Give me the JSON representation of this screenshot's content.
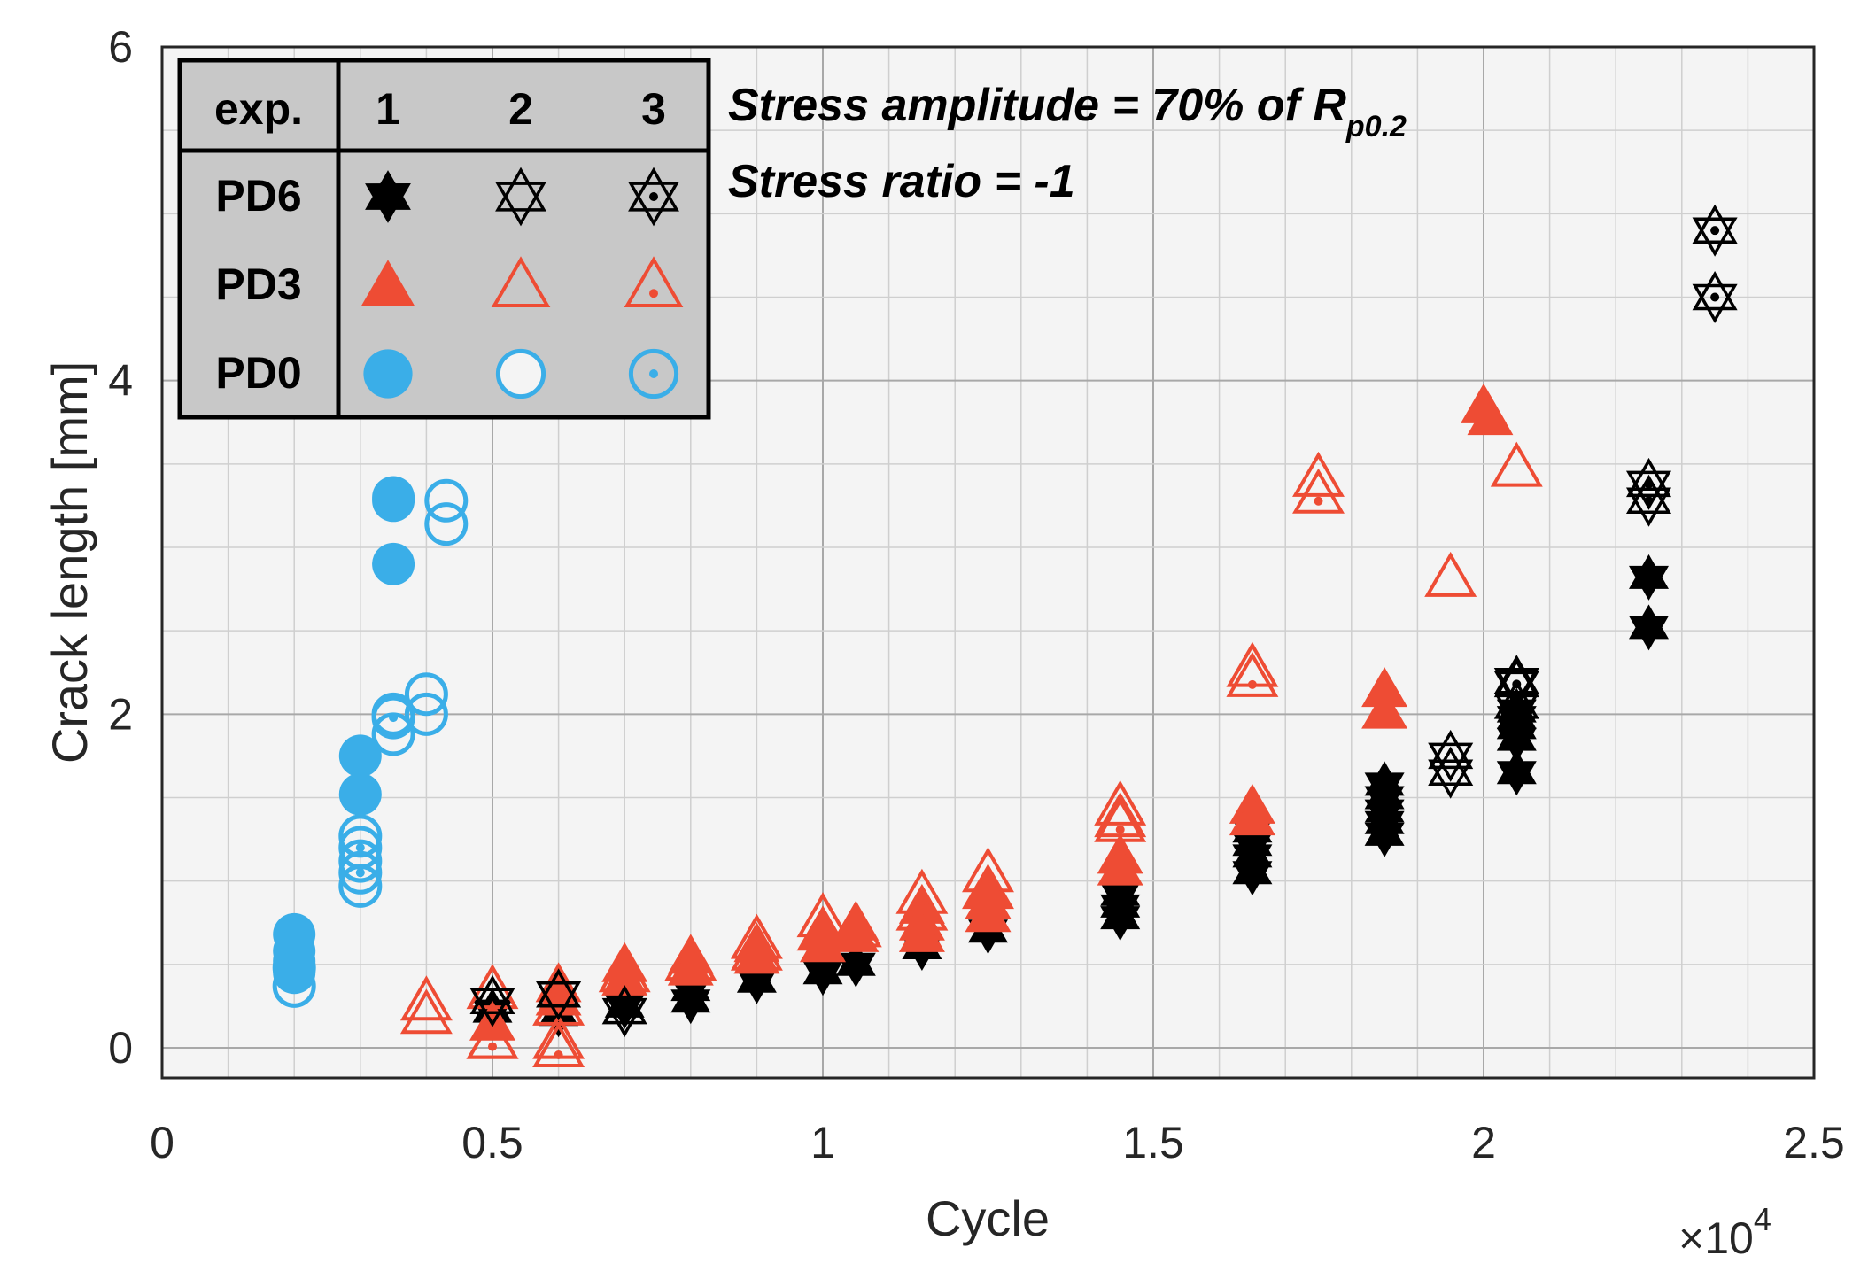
{
  "chart_data": {
    "type": "scatter",
    "xlabel": "Cycle",
    "ylabel": "Crack length [mm]",
    "x_multiplier_label": "×10",
    "x_multiplier_exp": "4",
    "xlim": [
      0,
      25000
    ],
    "ylim": [
      -0.2,
      6
    ],
    "x_ticks": [
      0,
      5000,
      10000,
      15000,
      20000,
      25000
    ],
    "x_tick_labels": [
      "0",
      "0.5",
      "1",
      "1.5",
      "2",
      "2.5"
    ],
    "y_ticks": [
      0,
      2,
      4,
      6
    ],
    "y_tick_labels": [
      "0",
      "2",
      "4",
      "6"
    ],
    "grid": true,
    "annotations": {
      "line1": "Stress amplitude = 70% of R",
      "line1_sub": "p0.2",
      "line2": "Stress ratio = -1"
    },
    "legend": {
      "corner_label": "exp.",
      "columns": [
        "1",
        "2",
        "3"
      ],
      "rows": [
        "PD6",
        "PD3",
        "PD0"
      ],
      "placement": "top-left"
    },
    "colors": {
      "PD6": "#000000",
      "PD3": "#ee4c34",
      "PD0": "#3aaee8"
    },
    "series": [
      {
        "name": "PD0 exp. 1",
        "group": "PD0",
        "exp": 1,
        "x": [
          2000,
          2000,
          2000,
          2000,
          3000,
          3000,
          3500,
          3500,
          3500
        ],
        "y": [
          0.68,
          0.58,
          0.52,
          0.45,
          1.75,
          1.52,
          3.3,
          3.28,
          2.9
        ]
      },
      {
        "name": "PD0 exp. 2",
        "group": "PD0",
        "exp": 2,
        "x": [
          2000,
          2000,
          3000,
          3000,
          3000,
          3500,
          3500,
          4000,
          4000,
          4300,
          4300
        ],
        "y": [
          0.48,
          0.37,
          1.27,
          1.12,
          0.97,
          2.0,
          1.88,
          2.12,
          2.0,
          3.28,
          3.14
        ]
      },
      {
        "name": "PD0 exp. 3",
        "group": "PD0",
        "exp": 3,
        "x": [
          3000,
          3000,
          3500
        ],
        "y": [
          1.2,
          1.05,
          1.98
        ]
      },
      {
        "name": "PD3 exp. 1",
        "group": "PD3",
        "exp": 1,
        "x": [
          5000,
          6000,
          6000,
          7000,
          7000,
          8000,
          8000,
          9000,
          9000,
          10000,
          10000,
          10500,
          10500,
          11500,
          11500,
          11500,
          12500,
          12500,
          12500,
          14500,
          14500,
          16500,
          16500,
          18500,
          18500,
          20000,
          20100
        ],
        "y": [
          0.15,
          0.38,
          0.3,
          0.5,
          0.42,
          0.55,
          0.48,
          0.62,
          0.55,
          0.7,
          0.62,
          0.75,
          0.68,
          0.85,
          0.75,
          0.68,
          0.95,
          0.88,
          0.8,
          1.15,
          1.08,
          1.45,
          1.38,
          2.15,
          2.02,
          3.85,
          3.78
        ]
      },
      {
        "name": "PD3 exp. 2",
        "group": "PD3",
        "exp": 2,
        "x": [
          4000,
          4000,
          5000,
          5000,
          6000,
          6000,
          7000,
          8000,
          9000,
          9000,
          10000,
          10000,
          10500,
          11500,
          11500,
          12500,
          12500,
          14500,
          14500,
          16500,
          17500,
          19500,
          20500
        ],
        "y": [
          0.28,
          0.2,
          0.35,
          0.05,
          0.25,
          0.05,
          0.45,
          0.52,
          0.65,
          0.58,
          0.78,
          0.7,
          0.72,
          0.92,
          0.82,
          1.05,
          0.95,
          1.45,
          1.38,
          2.28,
          3.42,
          2.82,
          3.48
        ]
      },
      {
        "name": "PD3 exp. 3",
        "group": "PD3",
        "exp": 3,
        "x": [
          5000,
          6000,
          14500,
          16500,
          17500
        ],
        "y": [
          0.05,
          0.0,
          1.35,
          2.22,
          3.32
        ]
      },
      {
        "name": "PD6 exp. 1",
        "group": "PD6",
        "exp": 1,
        "x": [
          5000,
          6000,
          7000,
          8000,
          8000,
          9000,
          10000,
          10500,
          11500,
          12500,
          14500,
          14500,
          14500,
          16500,
          16500,
          16500,
          16500,
          18500,
          18500,
          18500,
          18500,
          18500,
          20500,
          20500,
          20500,
          20500,
          20500,
          22500,
          22500
        ],
        "y": [
          0.22,
          0.2,
          0.25,
          0.35,
          0.28,
          0.4,
          0.45,
          0.5,
          0.6,
          0.7,
          0.92,
          0.85,
          0.78,
          1.3,
          1.22,
          1.15,
          1.05,
          1.58,
          1.5,
          1.42,
          1.35,
          1.28,
          2.02,
          1.98,
          1.92,
          1.85,
          1.65,
          2.82,
          2.52
        ]
      },
      {
        "name": "PD6 exp. 2",
        "group": "PD6",
        "exp": 2,
        "x": [
          5000,
          6000,
          7000,
          19500,
          19500,
          20500
        ],
        "y": [
          0.28,
          0.32,
          0.22,
          1.75,
          1.65,
          2.2
        ]
      },
      {
        "name": "PD6 exp. 3",
        "group": "PD6",
        "exp": 3,
        "x": [
          20500,
          20500,
          22500,
          22500,
          23500,
          23500
        ],
        "y": [
          2.18,
          2.05,
          3.38,
          3.28,
          4.9,
          4.5
        ]
      }
    ]
  }
}
